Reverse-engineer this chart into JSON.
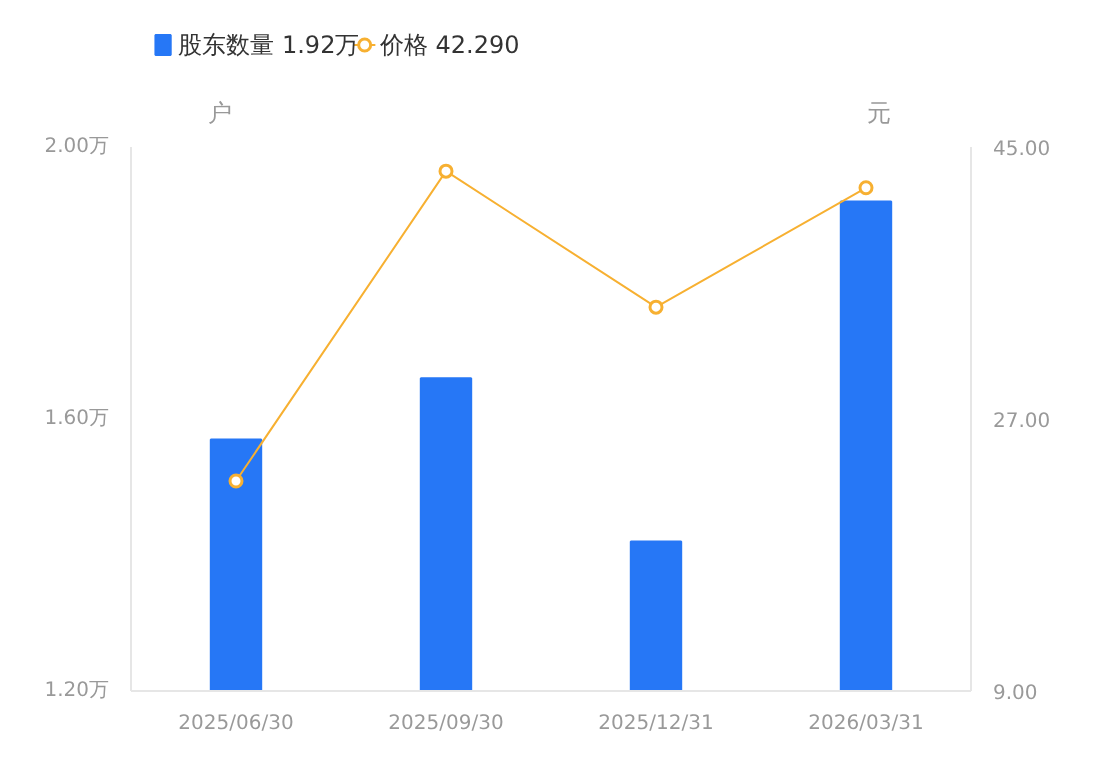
{
  "chart_data": {
    "type": "bar",
    "categories": [
      "2025/06/30",
      "2025/09/30",
      "2025/12/31",
      "2026/03/31"
    ],
    "series": [
      {
        "name": "股东数量 1.92万",
        "color": "#2677f6",
        "values": [
          1.57,
          1.66,
          1.42,
          1.92
        ]
      },
      {
        "name": "价格 42.290",
        "type": "line",
        "axis": "y2",
        "color": "#f7b031",
        "values": [
          22.9,
          43.4,
          34.4,
          42.3
        ]
      }
    ],
    "ylabel": "户",
    "y2label": "元",
    "ylim": [
      1.2,
      2.0
    ],
    "yticks": [
      {
        "value": 1.2,
        "label": "1.20万"
      },
      {
        "value": 1.6,
        "label": "1.60万"
      },
      {
        "value": 2.0,
        "label": "2.00万"
      }
    ],
    "y2lim": [
      9,
      45
    ],
    "y2ticks": [
      {
        "value": 9,
        "label": "9.00"
      },
      {
        "value": 27,
        "label": "27.00"
      },
      {
        "value": 45,
        "label": "45.00"
      }
    ],
    "grid": false,
    "legend": "top left",
    "marker": "circle"
  }
}
